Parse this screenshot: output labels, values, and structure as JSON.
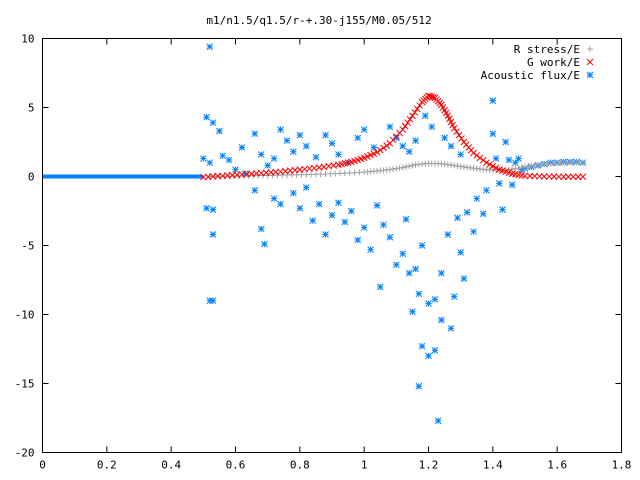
{
  "chart_data": {
    "type": "scatter",
    "title": "m1/n1.5/q1.5/r-+.30-j155/M0.05/512",
    "xlabel": "",
    "ylabel": "",
    "xlim": [
      0,
      1.8
    ],
    "ylim": [
      -20,
      10
    ],
    "grid": false,
    "legend_position": "top-right",
    "xticks": [
      0,
      0.2,
      0.4,
      0.6,
      0.8,
      1,
      1.2,
      1.4,
      1.6,
      1.8
    ],
    "xtick_labels": [
      "0",
      "0.2",
      "0.4",
      "0.6",
      "0.8",
      "1",
      "1.2",
      "1.4",
      "1.6",
      "1.8"
    ],
    "yticks": [
      10,
      5,
      0,
      -5,
      -10,
      -15,
      -20
    ],
    "ytick_labels": [
      "10",
      "5",
      "0",
      "-5",
      "-10",
      "-15",
      "-20"
    ],
    "series": [
      {
        "name": "R stress/E",
        "marker": "plus",
        "color": "#a0a0a0",
        "points": [
          [
            0.52,
            0.0
          ],
          [
            0.58,
            0.02
          ],
          [
            0.64,
            0.05
          ],
          [
            0.7,
            0.08
          ],
          [
            0.76,
            0.11
          ],
          [
            0.82,
            0.14
          ],
          [
            0.88,
            0.18
          ],
          [
            0.94,
            0.24
          ],
          [
            1.0,
            0.32
          ],
          [
            1.04,
            0.4
          ],
          [
            1.08,
            0.5
          ],
          [
            1.12,
            0.65
          ],
          [
            1.16,
            0.85
          ],
          [
            1.2,
            0.95
          ],
          [
            1.24,
            0.92
          ],
          [
            1.28,
            0.8
          ],
          [
            1.32,
            0.66
          ],
          [
            1.36,
            0.54
          ],
          [
            1.4,
            0.46
          ],
          [
            1.44,
            0.46
          ],
          [
            1.48,
            0.6
          ],
          [
            1.52,
            0.78
          ],
          [
            1.56,
            0.9
          ],
          [
            1.6,
            0.96
          ],
          [
            1.64,
            1.0
          ],
          [
            1.68,
            1.0
          ]
        ]
      },
      {
        "name": "G work/E",
        "marker": "cross",
        "color": "#ff0000",
        "points": [
          [
            0.5,
            -0.05
          ],
          [
            0.56,
            0.05
          ],
          [
            0.62,
            0.15
          ],
          [
            0.68,
            0.25
          ],
          [
            0.74,
            0.35
          ],
          [
            0.8,
            0.5
          ],
          [
            0.86,
            0.65
          ],
          [
            0.92,
            0.85
          ],
          [
            0.96,
            1.05
          ],
          [
            1.0,
            1.35
          ],
          [
            1.04,
            1.75
          ],
          [
            1.08,
            2.4
          ],
          [
            1.12,
            3.4
          ],
          [
            1.15,
            4.4
          ],
          [
            1.18,
            5.4
          ],
          [
            1.2,
            5.85
          ],
          [
            1.22,
            5.7
          ],
          [
            1.24,
            5.2
          ],
          [
            1.26,
            4.4
          ],
          [
            1.28,
            3.5
          ],
          [
            1.31,
            2.5
          ],
          [
            1.34,
            1.7
          ],
          [
            1.38,
            1.0
          ],
          [
            1.42,
            0.5
          ],
          [
            1.46,
            0.2
          ],
          [
            1.5,
            0.05
          ],
          [
            1.56,
            0.0
          ],
          [
            1.62,
            -0.02
          ],
          [
            1.68,
            -0.02
          ]
        ]
      },
      {
        "name": "Acoustic flux/E",
        "marker": "star",
        "color": "#0080ff",
        "line_x_range": [
          0,
          0.5
        ],
        "line_y": 0,
        "points": [
          [
            0.52,
            9.4
          ],
          [
            0.51,
            4.3
          ],
          [
            0.53,
            3.9
          ],
          [
            0.55,
            3.3
          ],
          [
            0.5,
            1.3
          ],
          [
            0.52,
            1.0
          ],
          [
            0.56,
            1.5
          ],
          [
            0.51,
            -2.3
          ],
          [
            0.53,
            -2.4
          ],
          [
            0.53,
            -4.2
          ],
          [
            0.52,
            -9.0
          ],
          [
            0.53,
            -9.0
          ],
          [
            0.58,
            1.2
          ],
          [
            0.62,
            2.1
          ],
          [
            0.66,
            3.1
          ],
          [
            0.68,
            1.6
          ],
          [
            0.7,
            0.8
          ],
          [
            0.66,
            -1.0
          ],
          [
            0.68,
            -3.8
          ],
          [
            0.69,
            -4.9
          ],
          [
            0.72,
            1.3
          ],
          [
            0.74,
            3.4
          ],
          [
            0.76,
            2.6
          ],
          [
            0.78,
            1.8
          ],
          [
            0.8,
            3.0
          ],
          [
            0.82,
            2.2
          ],
          [
            0.85,
            1.4
          ],
          [
            0.88,
            3.0
          ],
          [
            0.9,
            2.4
          ],
          [
            0.92,
            1.6
          ],
          [
            0.95,
            1.0
          ],
          [
            0.98,
            2.8
          ],
          [
            1.0,
            3.4
          ],
          [
            1.03,
            2.1
          ],
          [
            0.72,
            -1.6
          ],
          [
            0.74,
            -2.0
          ],
          [
            0.78,
            -1.2
          ],
          [
            0.8,
            -2.3
          ],
          [
            0.82,
            -0.8
          ],
          [
            0.84,
            -3.2
          ],
          [
            0.86,
            -2.0
          ],
          [
            0.88,
            -4.2
          ],
          [
            0.9,
            -2.8
          ],
          [
            0.92,
            -1.9
          ],
          [
            0.94,
            -3.3
          ],
          [
            0.96,
            -2.5
          ],
          [
            0.98,
            -4.6
          ],
          [
            1.0,
            -3.7
          ],
          [
            1.02,
            -5.3
          ],
          [
            1.04,
            -2.1
          ],
          [
            1.06,
            -3.5
          ],
          [
            1.05,
            -8.0
          ],
          [
            1.08,
            -4.4
          ],
          [
            1.1,
            -6.4
          ],
          [
            1.12,
            -5.6
          ],
          [
            1.13,
            -3.1
          ],
          [
            1.14,
            -7.0
          ],
          [
            1.15,
            -9.8
          ],
          [
            1.16,
            -6.7
          ],
          [
            1.17,
            -8.5
          ],
          [
            1.18,
            -5.0
          ],
          [
            1.18,
            -12.3
          ],
          [
            1.17,
            -15.2
          ],
          [
            1.2,
            -9.2
          ],
          [
            1.2,
            -13.0
          ],
          [
            1.22,
            -8.9
          ],
          [
            1.22,
            -12.6
          ],
          [
            1.23,
            -17.7
          ],
          [
            1.24,
            -10.4
          ],
          [
            1.24,
            -7.0
          ],
          [
            1.26,
            -4.2
          ],
          [
            1.27,
            -11.0
          ],
          [
            1.28,
            -8.7
          ],
          [
            1.29,
            -3.0
          ],
          [
            1.3,
            -5.5
          ],
          [
            1.31,
            -7.4
          ],
          [
            1.32,
            -2.6
          ],
          [
            1.34,
            -4.0
          ],
          [
            1.35,
            -1.6
          ],
          [
            1.37,
            -2.7
          ],
          [
            1.38,
            -1.0
          ],
          [
            1.4,
            5.5
          ],
          [
            1.4,
            3.1
          ],
          [
            1.41,
            1.3
          ],
          [
            1.42,
            -0.5
          ],
          [
            1.43,
            -2.4
          ],
          [
            1.44,
            2.5
          ],
          [
            1.45,
            1.2
          ],
          [
            1.46,
            -0.6
          ],
          [
            1.47,
            1.0
          ],
          [
            1.48,
            1.3
          ],
          [
            1.49,
            0.5
          ],
          [
            1.5,
            0.6
          ],
          [
            1.52,
            0.7
          ],
          [
            1.54,
            0.8
          ],
          [
            1.56,
            0.9
          ],
          [
            1.58,
            1.0
          ],
          [
            1.6,
            1.0
          ],
          [
            1.62,
            1.05
          ],
          [
            1.64,
            1.05
          ],
          [
            1.66,
            1.05
          ],
          [
            1.68,
            1.0
          ],
          [
            1.08,
            3.6
          ],
          [
            1.1,
            2.8
          ],
          [
            1.12,
            2.2
          ],
          [
            1.14,
            1.8
          ],
          [
            1.16,
            2.6
          ],
          [
            1.19,
            4.4
          ],
          [
            1.21,
            3.6
          ],
          [
            1.25,
            2.8
          ],
          [
            1.27,
            2.2
          ],
          [
            1.3,
            1.6
          ],
          [
            0.6,
            0.5
          ],
          [
            0.63,
            0.2
          ]
        ]
      }
    ]
  }
}
